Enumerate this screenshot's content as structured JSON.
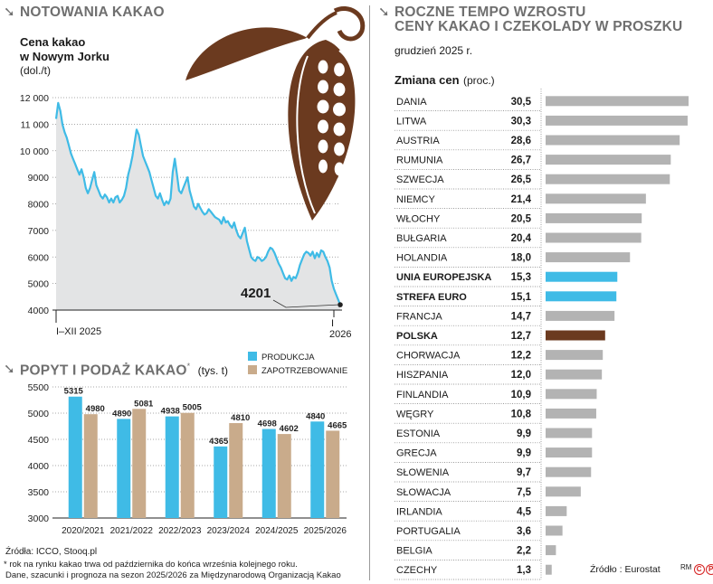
{
  "price_panel": {
    "header": "NOTOWANIA KAKAO",
    "title_line1": "Cena kakao",
    "title_line2": "w Nowym Jorku",
    "unit": "(dol./t)",
    "last_value_label": "4201",
    "x_label_start": "I–XII 2025",
    "x_label_end_line1": "I",
    "x_label_end_line2": "2026"
  },
  "supply_panel": {
    "header": "POPYT I PODAŻ KAKAO",
    "header_mark": "*",
    "unit": "(tys. t)",
    "legend_production": "PRODUKCJA",
    "legend_demand": "ZAPOTRZEBOWANIE"
  },
  "growth_panel": {
    "header_line1": "ROCZNE TEMPO WZROSTU",
    "header_line2": "CENY KAKAO I CZEKOLADY W PROSZKU",
    "date": "grudzień 2025 r.",
    "table_title": "Zmiana cen",
    "table_unit": "(proc.)",
    "source": "Źródło : Eurostat",
    "credit": "RM",
    "copyright_marks": [
      "C",
      "P"
    ]
  },
  "footer": {
    "sources": "Źródła: ICCO, Stooq.pl",
    "note_line1": "* rok na rynku kakao trwa od października do końca września kolejnego roku.",
    "note_line2": "Dane, szacunki i prognoza na sezon 2025/2026 za Międzynarodową Organizacją Kakao"
  },
  "colors": {
    "cyan": "#3fbbe6",
    "tan": "#c9ab8b",
    "brown": "#6b3a1f",
    "grey_bar": "#b3b3b3",
    "header_grey": "#6f6f6f",
    "area_fill": "#e3e4e5"
  },
  "chart_data": [
    {
      "type": "area",
      "title": "Cena kakao w Nowym Jorku",
      "ylabel": "(dol./t)",
      "ylim": [
        4000,
        12000
      ],
      "yticks": [
        4000,
        5000,
        6000,
        7000,
        8000,
        9000,
        10000,
        11000,
        12000
      ],
      "ytick_labels": [
        "4000",
        "5000",
        "6000",
        "7000",
        "8000",
        "9000",
        "10 000",
        "11 000",
        "12 000"
      ],
      "x_labels": [
        "I–XII 2025",
        "I 2026"
      ],
      "series": [
        {
          "values": [
            11200,
            11800,
            11500,
            11000,
            10700,
            10500,
            10200,
            9900,
            9700,
            9500,
            9300,
            9100,
            9300,
            9000,
            8600,
            8400,
            8600,
            8900,
            9200,
            8700,
            8500,
            8300,
            8200,
            8350,
            8250,
            8050,
            8200,
            8050,
            8250,
            8300,
            8050,
            8150,
            8300,
            8600,
            9100,
            9400,
            9800,
            10300,
            10800,
            10600,
            10200,
            9800,
            9600,
            9400,
            9200,
            8900,
            8600,
            8300,
            8200,
            8400,
            8150,
            7950,
            8100,
            8000,
            8200,
            9200,
            9700,
            9100,
            8500,
            8400,
            8600,
            8800,
            9000,
            8500,
            8200,
            7900,
            7800,
            8000,
            7850,
            7700,
            7600,
            7650,
            7800,
            7700,
            7600,
            7500,
            7450,
            7400,
            7250,
            7500,
            7300,
            7350,
            7200,
            7100,
            7300,
            7000,
            6800,
            6700,
            6900,
            7100,
            6600,
            6300,
            6000,
            5900,
            5850,
            6000,
            5950,
            5850,
            5900,
            6000,
            6200,
            6350,
            6300,
            6150,
            5950,
            5750,
            5600,
            5400,
            5200,
            5150,
            5300,
            5100,
            5250,
            5200,
            5400,
            5700,
            5900,
            6100,
            6200,
            6150,
            6050,
            6200,
            5950,
            6150,
            6000,
            6250,
            6200,
            6000,
            5850,
            5600,
            5100,
            4800,
            4600,
            4400,
            4201
          ]
        }
      ]
    },
    {
      "type": "bar",
      "title": "POPYT I PODAŻ KAKAO",
      "ylabel": "(tys. t)",
      "ylim": [
        3000,
        5500
      ],
      "yticks": [
        3000,
        3500,
        4000,
        4500,
        5000,
        5500
      ],
      "categories": [
        "2020/2021",
        "2021/2022",
        "2022/2023",
        "2023/2024",
        "2024/2025",
        "2025/2026"
      ],
      "series": [
        {
          "name": "PRODUKCJA",
          "values": [
            5315,
            4890,
            4938,
            4365,
            4698,
            4840
          ]
        },
        {
          "name": "ZAPOTRZEBOWANIE",
          "values": [
            4980,
            5081,
            5005,
            4810,
            4602,
            4665
          ]
        }
      ]
    },
    {
      "type": "bar",
      "orientation": "horizontal",
      "title": "ROCZNE TEMPO WZROSTU CENY KAKAO I CZEKOLADY W PROSZKU",
      "ylabel": "Zmiana cen (proc.)",
      "categories": [
        "DANIA",
        "LITWA",
        "AUSTRIA",
        "RUMUNIA",
        "SZWECJA",
        "NIEMCY",
        "WŁOCHY",
        "BUŁGARIA",
        "HOLANDIA",
        "UNIA EUROPEJSKA",
        "STREFA EURO",
        "FRANCJA",
        "POLSKA",
        "CHORWACJA",
        "HISZPANIA",
        "FINLANDIA",
        "WĘGRY",
        "ESTONIA",
        "GRECJA",
        "SŁOWENIA",
        "SŁOWACJA",
        "IRLANDIA",
        "PORTUGALIA",
        "BELGIA",
        "CZECHY"
      ],
      "values": [
        30.5,
        30.3,
        28.6,
        26.7,
        26.5,
        21.4,
        20.5,
        20.4,
        18.0,
        15.3,
        15.1,
        14.7,
        12.7,
        12.2,
        12.0,
        10.9,
        10.8,
        9.9,
        9.9,
        9.7,
        7.5,
        4.5,
        3.6,
        2.2,
        1.3
      ],
      "value_labels": [
        "30,5",
        "30,3",
        "28,6",
        "26,7",
        "26,5",
        "21,4",
        "20,5",
        "20,4",
        "18,0",
        "15,3",
        "15,1",
        "14,7",
        "12,7",
        "12,2",
        "12,0",
        "10,9",
        "10,8",
        "9,9",
        "9,9",
        "9,7",
        "7,5",
        "4,5",
        "3,6",
        "2,2",
        "1,3"
      ],
      "highlight": {
        "UNIA EUROPEJSKA": "cyan",
        "STREFA EURO": "cyan",
        "POLSKA": "brown"
      },
      "bold_rows": [
        "UNIA EUROPEJSKA",
        "STREFA EURO",
        "POLSKA"
      ]
    }
  ]
}
